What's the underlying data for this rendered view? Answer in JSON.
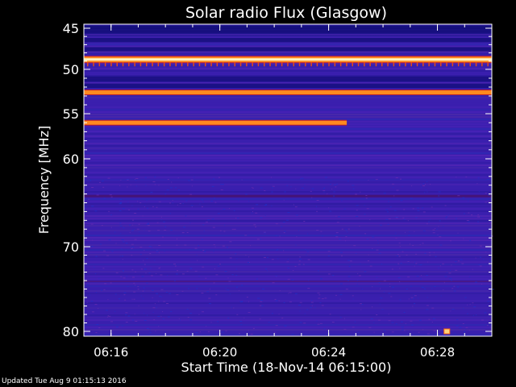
{
  "chart_data": {
    "type": "heatmap",
    "title": "Solar radio Flux (Glasgow)",
    "xlabel": "Start Time (18-Nov-14 06:15:00)",
    "ylabel": "Frequency [MHz]",
    "x_unit": "time (HH:MM)",
    "x_range": [
      "06:15:00",
      "06:30:00"
    ],
    "x_ticks": [
      "06:16",
      "06:20",
      "06:24",
      "06:28"
    ],
    "y_range": [
      44.5,
      80.5
    ],
    "y_ticks": [
      45,
      50,
      55,
      60,
      70,
      80
    ],
    "y_axis_scale": "nonlinear",
    "colors": {
      "background": "#000000",
      "plot_base": "#3a1fae",
      "axes": "#ffffff",
      "emission_line": "#ff8a20",
      "emission_core": "#fff4c0"
    },
    "emission_bands": [
      {
        "freq_mhz": 48.8,
        "start": "06:15:00",
        "end": "06:30:00",
        "intensity": "very high"
      },
      {
        "freq_mhz": 52.6,
        "start": "06:15:00",
        "end": "06:30:00",
        "intensity": "high"
      },
      {
        "freq_mhz": 56.0,
        "start": "06:15:00",
        "end": "06:24:40",
        "intensity": "high"
      }
    ],
    "bursts": [
      {
        "time": "06:28:20",
        "freq_mhz": 80.0
      }
    ]
  },
  "footer": {
    "updated": "Updated Tue Aug  9 01:15:13 2016"
  }
}
